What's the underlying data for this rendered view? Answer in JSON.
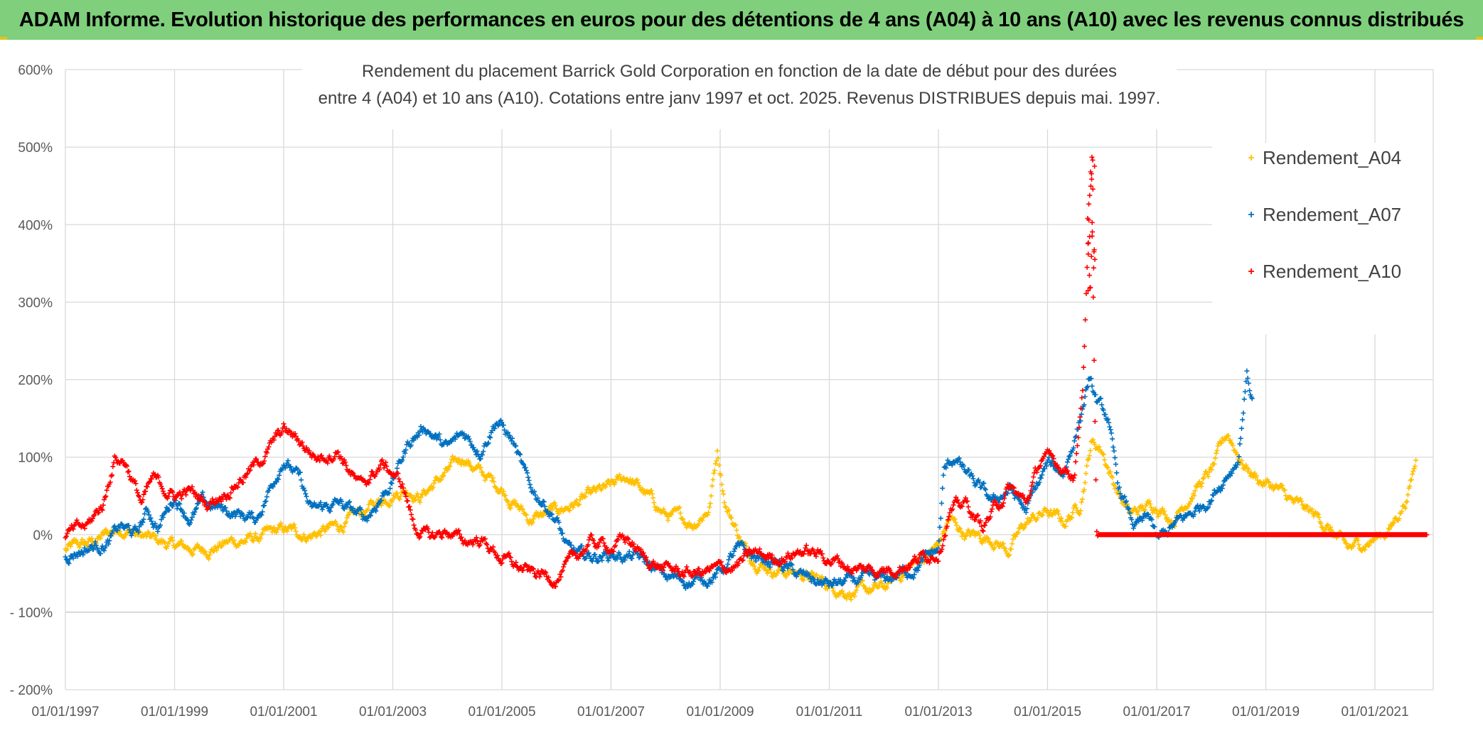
{
  "header": {
    "banner_title": "ADAM Informe. Evolution historique des performances en euros pour des détentions de 4 ans (A04) à 10 ans (A10) avec les revenus connus distribués"
  },
  "chart_data": {
    "type": "scatter",
    "title_line1": "Rendement du placement Barrick Gold Corporation en fonction de la date de début pour des durées",
    "title_line2": "entre 4 (A04) et 10 ans (A10). Cotations entre janv 1997 et oct. 2025. Revenus DISTRIBUES depuis mai. 1997.",
    "xlabel": "",
    "ylabel": "",
    "x_ticks": [
      "01/01/1997",
      "01/01/1999",
      "01/01/2001",
      "01/01/2003",
      "01/01/2005",
      "01/01/2007",
      "01/01/2009",
      "01/01/2011",
      "01/01/2013",
      "01/01/2015",
      "01/01/2017",
      "01/01/2019",
      "01/01/2021"
    ],
    "xlim": [
      1997.0,
      2021.95
    ],
    "y_ticks": [
      "600%",
      "500%",
      "400%",
      "300%",
      "200%",
      "100%",
      "0%",
      "- 100%",
      "- 200%"
    ],
    "ylim": [
      -200,
      600
    ],
    "grid": true,
    "legend_position": "top-right",
    "colors": {
      "A04": "#ffc000",
      "A07": "#0070c0",
      "A10": "#ff0000"
    },
    "series": [
      {
        "name": "Rendement_A04",
        "key": "A04",
        "x_end": 2021.75,
        "points": [
          [
            1997.0,
            -20
          ],
          [
            1997.5,
            -10
          ],
          [
            1998.0,
            10
          ],
          [
            1998.5,
            -5
          ],
          [
            1999.0,
            -15
          ],
          [
            1999.5,
            -20
          ],
          [
            2000.0,
            -10
          ],
          [
            2000.5,
            -5
          ],
          [
            2001.0,
            5
          ],
          [
            2001.5,
            0
          ],
          [
            2002.0,
            10
          ],
          [
            2002.5,
            30
          ],
          [
            2003.0,
            55
          ],
          [
            2003.3,
            60
          ],
          [
            2003.5,
            50
          ],
          [
            2004.0,
            80
          ],
          [
            2004.3,
            100
          ],
          [
            2004.6,
            80
          ],
          [
            2005.0,
            60
          ],
          [
            2005.5,
            20
          ],
          [
            2006.0,
            30
          ],
          [
            2006.5,
            45
          ],
          [
            2007.0,
            60
          ],
          [
            2007.3,
            75
          ],
          [
            2007.6,
            55
          ],
          [
            2008.0,
            25
          ],
          [
            2008.5,
            15
          ],
          [
            2008.8,
            35
          ],
          [
            2008.95,
            110
          ],
          [
            2009.1,
            40
          ],
          [
            2009.5,
            -25
          ],
          [
            2010.0,
            -45
          ],
          [
            2010.5,
            -50
          ],
          [
            2011.0,
            -65
          ],
          [
            2011.5,
            -75
          ],
          [
            2012.0,
            -70
          ],
          [
            2012.5,
            -40
          ],
          [
            2013.0,
            -15
          ],
          [
            2013.2,
            20
          ],
          [
            2013.5,
            0
          ],
          [
            2014.0,
            -5
          ],
          [
            2014.3,
            -20
          ],
          [
            2014.6,
            15
          ],
          [
            2015.0,
            30
          ],
          [
            2015.3,
            15
          ],
          [
            2015.6,
            40
          ],
          [
            2015.8,
            120
          ],
          [
            2016.0,
            110
          ],
          [
            2016.2,
            70
          ],
          [
            2016.5,
            25
          ],
          [
            2017.0,
            40
          ],
          [
            2017.3,
            20
          ],
          [
            2017.7,
            60
          ],
          [
            2018.0,
            80
          ],
          [
            2018.3,
            130
          ],
          [
            2018.6,
            90
          ],
          [
            2018.9,
            70
          ],
          [
            2019.2,
            60
          ],
          [
            2019.5,
            40
          ],
          [
            2020.0,
            20
          ],
          [
            2020.5,
            -20
          ],
          [
            2021.0,
            -5
          ],
          [
            2021.3,
            10
          ],
          [
            2021.6,
            50
          ],
          [
            2021.75,
            95
          ]
        ]
      },
      {
        "name": "Rendement_A07",
        "key": "A07",
        "x_end": 2018.75,
        "points": [
          [
            1997.0,
            -25
          ],
          [
            1997.5,
            -15
          ],
          [
            1997.8,
            -10
          ],
          [
            1998.0,
            10
          ],
          [
            1998.3,
            0
          ],
          [
            1998.5,
            30
          ],
          [
            1998.7,
            10
          ],
          [
            1999.0,
            50
          ],
          [
            1999.3,
            20
          ],
          [
            1999.5,
            40
          ],
          [
            2000.0,
            30
          ],
          [
            2000.5,
            20
          ],
          [
            2001.0,
            100
          ],
          [
            2001.3,
            70
          ],
          [
            2001.5,
            30
          ],
          [
            2002.0,
            40
          ],
          [
            2002.5,
            20
          ],
          [
            2003.0,
            70
          ],
          [
            2003.3,
            120
          ],
          [
            2003.6,
            140
          ],
          [
            2004.0,
            110
          ],
          [
            2004.3,
            130
          ],
          [
            2004.6,
            110
          ],
          [
            2004.9,
            150
          ],
          [
            2005.2,
            120
          ],
          [
            2005.5,
            60
          ],
          [
            2005.8,
            40
          ],
          [
            2006.0,
            20
          ],
          [
            2006.2,
            -20
          ],
          [
            2006.5,
            -30
          ],
          [
            2007.0,
            -25
          ],
          [
            2007.5,
            -30
          ],
          [
            2008.0,
            -55
          ],
          [
            2008.5,
            -60
          ],
          [
            2009.0,
            -50
          ],
          [
            2009.3,
            -20
          ],
          [
            2009.6,
            -30
          ],
          [
            2010.0,
            -35
          ],
          [
            2010.5,
            -55
          ],
          [
            2011.0,
            -65
          ],
          [
            2011.5,
            -60
          ],
          [
            2012.0,
            -60
          ],
          [
            2012.5,
            -45
          ],
          [
            2013.0,
            -20
          ],
          [
            2013.1,
            80
          ],
          [
            2013.3,
            100
          ],
          [
            2013.6,
            70
          ],
          [
            2014.0,
            40
          ],
          [
            2014.3,
            60
          ],
          [
            2014.6,
            30
          ],
          [
            2014.8,
            60
          ],
          [
            2015.0,
            90
          ],
          [
            2015.3,
            80
          ],
          [
            2015.6,
            150
          ],
          [
            2015.75,
            200
          ],
          [
            2015.9,
            170
          ],
          [
            2016.1,
            150
          ],
          [
            2016.3,
            60
          ],
          [
            2016.6,
            10
          ],
          [
            2016.9,
            20
          ],
          [
            2017.0,
            -10
          ],
          [
            2017.3,
            10
          ],
          [
            2017.7,
            30
          ],
          [
            2018.0,
            50
          ],
          [
            2018.3,
            80
          ],
          [
            2018.5,
            100
          ],
          [
            2018.65,
            210
          ],
          [
            2018.75,
            175
          ]
        ]
      },
      {
        "name": "Rendement_A10",
        "key": "A10",
        "x_end": 2021.95,
        "points": [
          [
            1997.0,
            0
          ],
          [
            1997.4,
            10
          ],
          [
            1997.7,
            40
          ],
          [
            1997.9,
            100
          ],
          [
            1998.1,
            95
          ],
          [
            1998.4,
            40
          ],
          [
            1998.6,
            70
          ],
          [
            1998.8,
            60
          ],
          [
            1999.0,
            50
          ],
          [
            1999.3,
            55
          ],
          [
            1999.6,
            40
          ],
          [
            2000.0,
            60
          ],
          [
            2000.5,
            90
          ],
          [
            2001.0,
            135
          ],
          [
            2001.3,
            120
          ],
          [
            2001.6,
            100
          ],
          [
            2002.0,
            110
          ],
          [
            2002.4,
            60
          ],
          [
            2002.8,
            90
          ],
          [
            2003.0,
            80
          ],
          [
            2003.2,
            60
          ],
          [
            2003.4,
            10
          ],
          [
            2003.7,
            -5
          ],
          [
            2004.0,
            5
          ],
          [
            2004.3,
            -10
          ],
          [
            2004.6,
            -5
          ],
          [
            2005.0,
            -30
          ],
          [
            2005.5,
            -50
          ],
          [
            2006.0,
            -55
          ],
          [
            2006.3,
            -35
          ],
          [
            2006.6,
            -10
          ],
          [
            2007.0,
            -15
          ],
          [
            2007.3,
            -5
          ],
          [
            2007.6,
            -30
          ],
          [
            2008.0,
            -45
          ],
          [
            2008.5,
            -50
          ],
          [
            2009.0,
            -45
          ],
          [
            2009.3,
            -40
          ],
          [
            2009.6,
            -25
          ],
          [
            2010.0,
            -30
          ],
          [
            2010.5,
            -20
          ],
          [
            2011.0,
            -30
          ],
          [
            2011.5,
            -45
          ],
          [
            2012.0,
            -45
          ],
          [
            2012.5,
            -35
          ],
          [
            2013.0,
            -20
          ],
          [
            2013.2,
            30
          ],
          [
            2013.5,
            40
          ],
          [
            2013.8,
            10
          ],
          [
            2014.0,
            30
          ],
          [
            2014.3,
            60
          ],
          [
            2014.6,
            40
          ],
          [
            2014.9,
            100
          ],
          [
            2015.2,
            90
          ],
          [
            2015.5,
            80
          ],
          [
            2015.65,
            200
          ],
          [
            2015.8,
            480
          ],
          [
            2015.9,
            0
          ],
          [
            2021.95,
            0
          ]
        ],
        "spike": {
          "x": 2015.8,
          "y_min": 300,
          "y_max": 495
        }
      }
    ],
    "legend": [
      "Rendement_A04",
      "Rendement_A07",
      "Rendement_A10"
    ]
  }
}
